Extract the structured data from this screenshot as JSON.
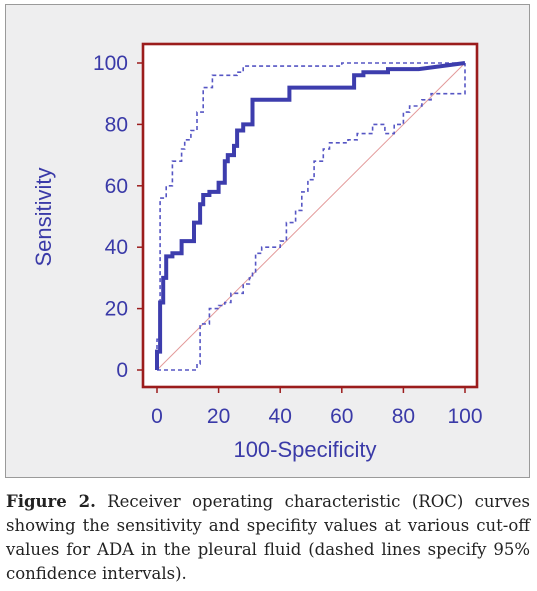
{
  "caption": {
    "label": "Figure 2.",
    "text": " Receiver operating characteristic (ROC) curves showing the sensitivity and specifity values at various cut-off values for ADA in the pleural fluid (dashed lines specify 95% confidence intervals)."
  },
  "colors": {
    "frame": "#9b1c1c",
    "curve": "#3d3dad",
    "ci": "#5656c4",
    "diagonal": "#e39a9a",
    "text": "#3a3aa8"
  },
  "chart_data": {
    "type": "line",
    "xlabel": "100-Specificity",
    "ylabel": "Sensitivity",
    "xlim": [
      0,
      100
    ],
    "ylim": [
      0,
      100
    ],
    "xticks": [
      "0",
      "20",
      "40",
      "60",
      "80",
      "100"
    ],
    "yticks": [
      "0",
      "20",
      "40",
      "60",
      "80",
      "100"
    ],
    "grid": false,
    "series": [
      {
        "role": "roc",
        "style": "solid",
        "x": [
          0,
          0,
          1,
          1,
          2,
          2,
          3,
          3,
          5,
          5,
          8,
          8,
          12,
          12,
          14,
          14,
          15,
          15,
          17,
          17,
          20,
          20,
          22,
          22,
          23,
          23,
          25,
          25,
          26,
          26,
          28,
          28,
          31,
          31,
          43,
          43,
          64,
          64,
          67,
          67,
          75,
          75,
          85,
          100
        ],
        "y": [
          0,
          6,
          6,
          22,
          22,
          30,
          30,
          37,
          37,
          38,
          38,
          42,
          42,
          48,
          48,
          54,
          54,
          57,
          57,
          58,
          58,
          61,
          61,
          68,
          68,
          70,
          70,
          73,
          73,
          78,
          78,
          80,
          80,
          88,
          88,
          92,
          92,
          96,
          96,
          97,
          97,
          98,
          98,
          100
        ]
      },
      {
        "role": "ci-upper",
        "style": "dashed",
        "x": [
          0,
          0,
          1,
          1,
          3,
          3,
          5,
          5,
          8,
          8,
          9,
          9,
          11,
          11,
          13,
          13,
          15,
          15,
          18,
          18,
          26,
          26,
          28,
          28,
          60,
          60,
          100
        ],
        "y": [
          0,
          10,
          10,
          56,
          56,
          60,
          60,
          68,
          68,
          72,
          72,
          75,
          75,
          78,
          78,
          84,
          84,
          92,
          92,
          96,
          96,
          97,
          97,
          99,
          99,
          100,
          100
        ]
      },
      {
        "role": "ci-lower",
        "style": "dashed",
        "x": [
          0,
          13,
          13,
          14,
          14,
          17,
          17,
          20,
          20,
          22,
          22,
          24,
          24,
          28,
          28,
          30,
          30,
          31,
          31,
          32,
          32,
          34,
          34,
          40,
          40,
          42,
          42,
          45,
          45,
          47,
          47,
          49,
          49,
          51,
          51,
          54,
          54,
          56,
          56,
          62,
          62,
          65,
          65,
          70,
          70,
          74,
          74,
          77,
          77,
          80,
          80,
          82,
          82,
          86,
          86,
          89,
          89,
          92,
          92,
          100,
          100
        ],
        "y": [
          0,
          0,
          2,
          2,
          15,
          15,
          20,
          20,
          21,
          21,
          22,
          22,
          25,
          25,
          28,
          28,
          30,
          30,
          32,
          32,
          38,
          38,
          40,
          40,
          42,
          42,
          48,
          48,
          52,
          52,
          58,
          58,
          62,
          62,
          68,
          68,
          72,
          72,
          74,
          74,
          75,
          75,
          77,
          77,
          80,
          80,
          77,
          77,
          80,
          80,
          84,
          84,
          86,
          86,
          88,
          88,
          90,
          90,
          90,
          90,
          100
        ]
      },
      {
        "role": "reference",
        "style": "thin",
        "x": [
          0,
          100
        ],
        "y": [
          0,
          100
        ]
      }
    ]
  }
}
